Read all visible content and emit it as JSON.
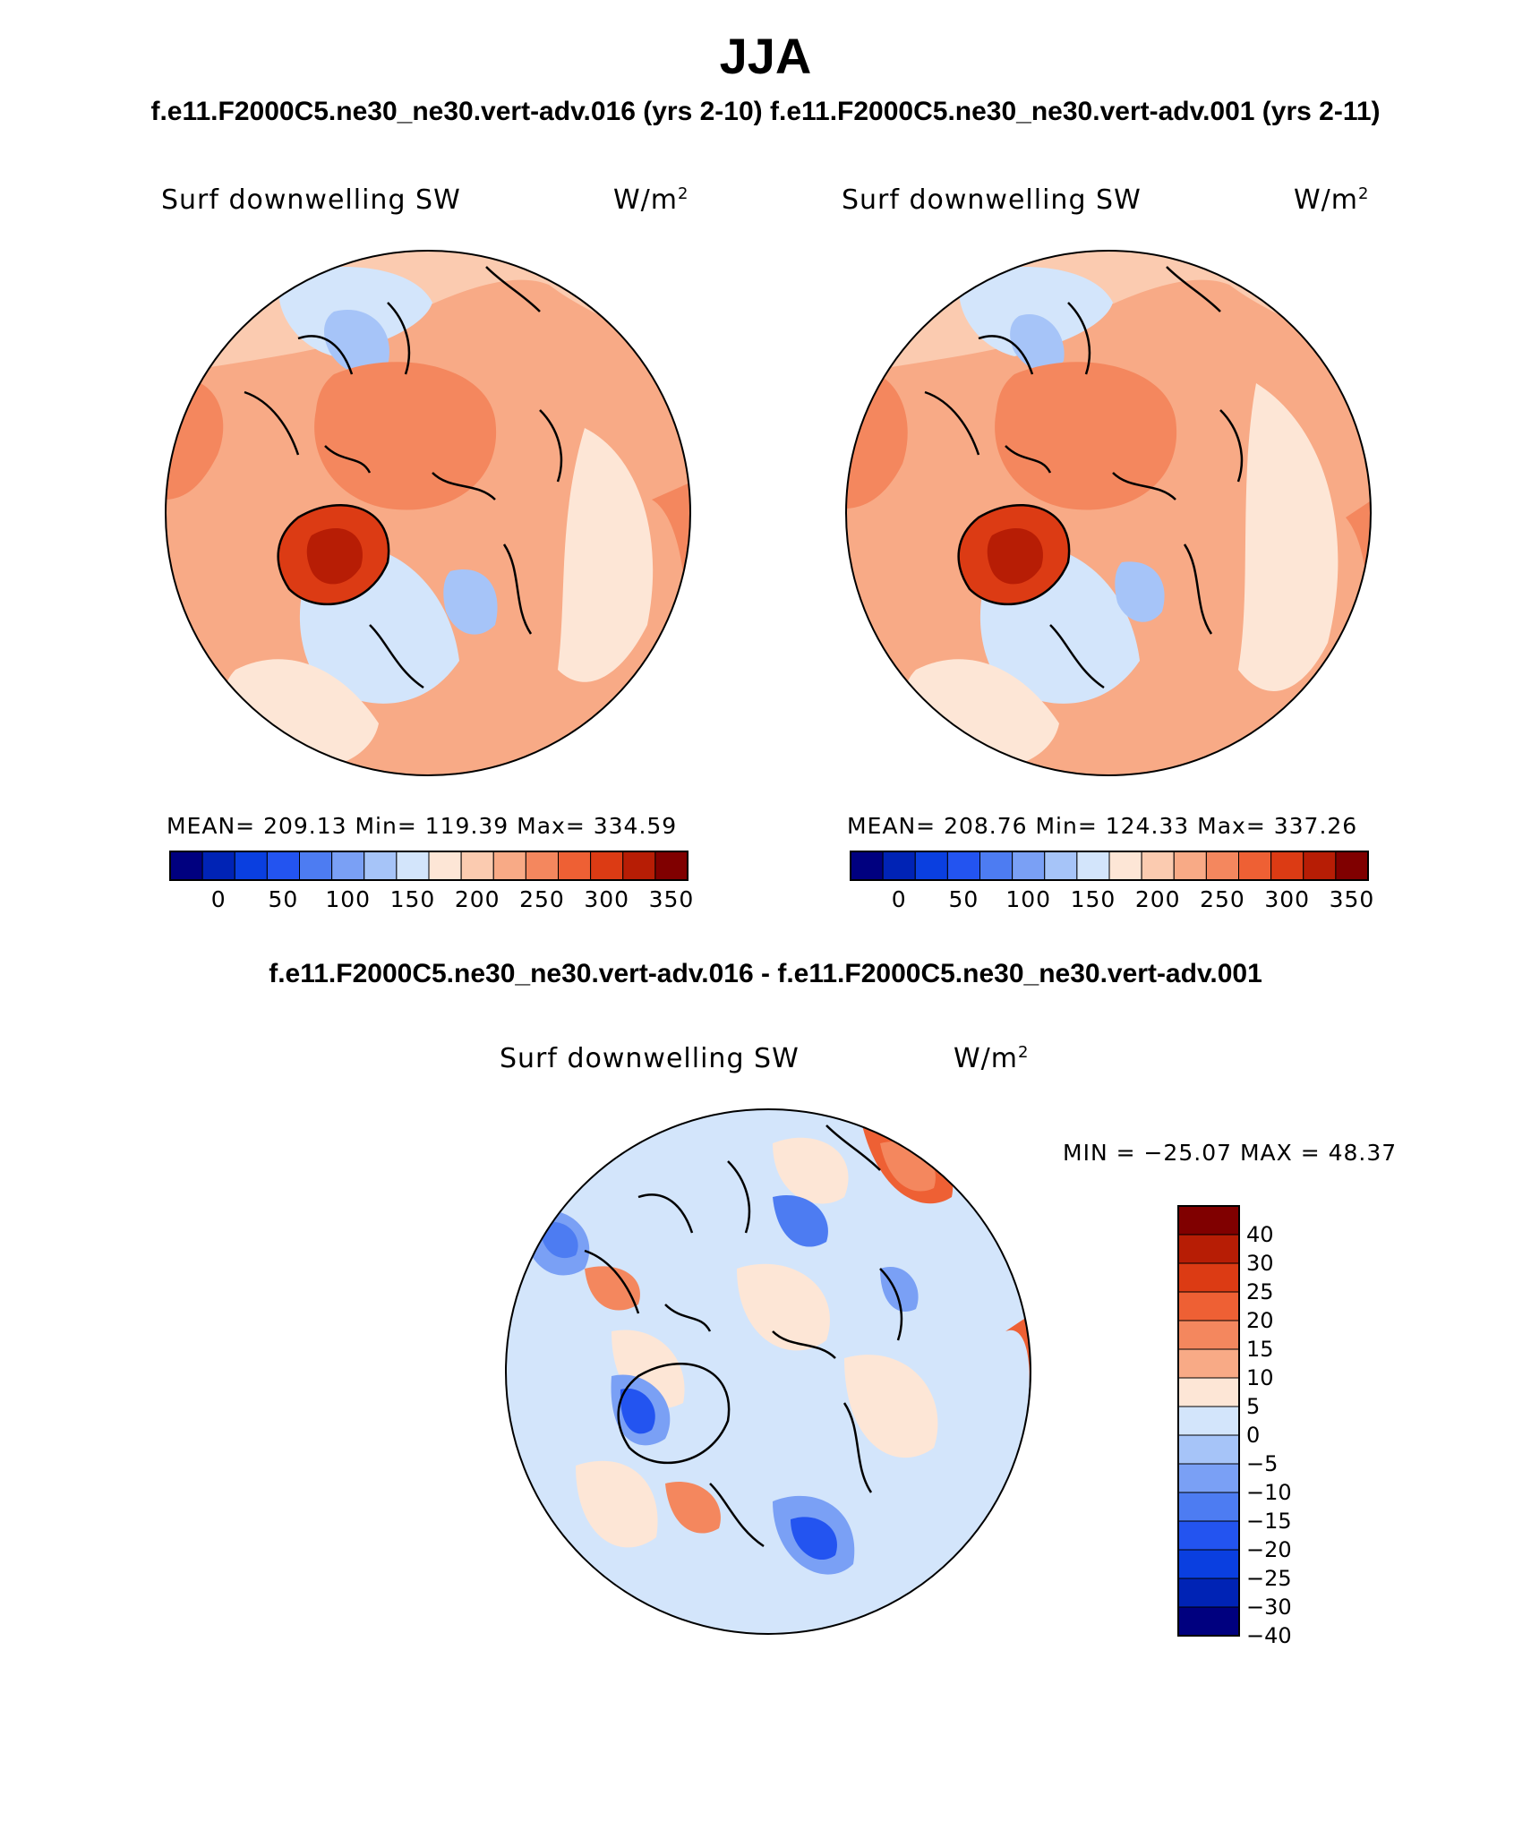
{
  "header": {
    "season": "JJA",
    "case_titles": "f.e11.F2000C5.ne30_ne30.vert-adv.016 (yrs 2-10) f.e11.F2000C5.ne30_ne30.vert-adv.001 (yrs 2-11)"
  },
  "panels": [
    {
      "variable": "Surf downwelling SW",
      "units_base": "W/m",
      "units_exp": "2",
      "stats": "MEAN= 209.13   Min= 119.39   Max= 334.59"
    },
    {
      "variable": "Surf downwelling SW",
      "units_base": "W/m",
      "units_exp": "2",
      "stats": "MEAN= 208.76   Min= 124.33   Max= 337.26"
    }
  ],
  "top_colorbar": {
    "colors": [
      "#00007f",
      "#0023b5",
      "#0a3fe0",
      "#2354f0",
      "#4d7cf2",
      "#7aa0f5",
      "#a6c4f8",
      "#d3e5fb",
      "#fde6d6",
      "#fbcbb0",
      "#f8aa86",
      "#f4875e",
      "#ee6034",
      "#dc3b14",
      "#b71d05",
      "#800000"
    ],
    "tick_labels": [
      "0",
      "50",
      "100",
      "150",
      "200",
      "250",
      "300",
      "350"
    ]
  },
  "difference_panel": {
    "title": "f.e11.F2000C5.ne30_ne30.vert-adv.016 - f.e11.F2000C5.ne30_ne30.vert-adv.001",
    "variable": "Surf downwelling SW",
    "units_base": "W/m",
    "units_exp": "2",
    "min_max": "MIN = −25.07 MAX =  48.37"
  },
  "diff_colorbar": {
    "colors": [
      "#800000",
      "#b71d05",
      "#dc3b14",
      "#ee6034",
      "#f4875e",
      "#f8aa86",
      "#fde6d6",
      "#d3e5fb",
      "#a6c4f8",
      "#7aa0f5",
      "#4d7cf2",
      "#2354f0",
      "#0a3fe0",
      "#0023b5",
      "#00007f"
    ],
    "tick_labels": [
      "40",
      "30",
      "25",
      "20",
      "15",
      "10",
      "5",
      "0",
      "−5",
      "−10",
      "−15",
      "−20",
      "−25",
      "−30",
      "−40"
    ]
  }
}
